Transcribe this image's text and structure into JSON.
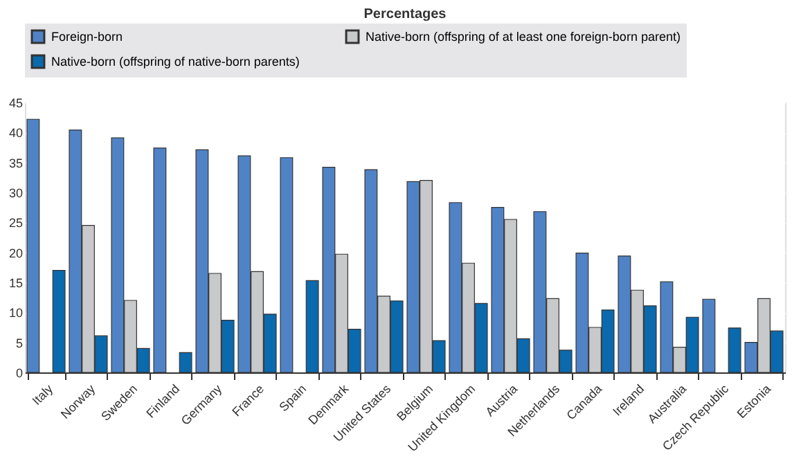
{
  "chart_data": {
    "type": "bar",
    "title": "Percentages",
    "categories": [
      "Italy",
      "Norway",
      "Sweden",
      "Finland",
      "Germany",
      "France",
      "Spain",
      "Denmark",
      "United States",
      "Belgium",
      "United Kingdom",
      "Austria",
      "Netherlands",
      "Canada",
      "Ireland",
      "Australia",
      "Czech Republic",
      "Estonia"
    ],
    "series": [
      {
        "name": "Foreign-born",
        "color": "#4f83c6",
        "values": [
          42.2,
          40.4,
          39.1,
          37.4,
          37.1,
          36.1,
          35.8,
          34.2,
          33.8,
          31.8,
          28.3,
          27.5,
          26.8,
          19.9,
          19.4,
          15.1,
          12.2,
          5.0
        ]
      },
      {
        "name": "Native-born (offspring of at least one foreign-born parent)",
        "color": "#c8c9cb",
        "values": [
          null,
          24.5,
          12.0,
          null,
          16.5,
          16.8,
          null,
          19.7,
          12.7,
          32.0,
          18.2,
          25.5,
          12.3,
          7.5,
          13.7,
          4.2,
          null,
          12.3
        ]
      },
      {
        "name": "Native-born (offspring of native-born parents)",
        "color": "#0b69ad",
        "values": [
          17.0,
          6.1,
          4.0,
          3.3,
          8.7,
          9.7,
          15.3,
          7.2,
          11.9,
          5.3,
          11.5,
          5.6,
          3.7,
          10.4,
          11.1,
          9.2,
          7.4,
          6.9
        ]
      }
    ],
    "ylim": [
      0,
      45
    ],
    "yticks": [
      0,
      5,
      10,
      15,
      20,
      25,
      30,
      35,
      40,
      45
    ],
    "grid": true,
    "legend": "top"
  }
}
